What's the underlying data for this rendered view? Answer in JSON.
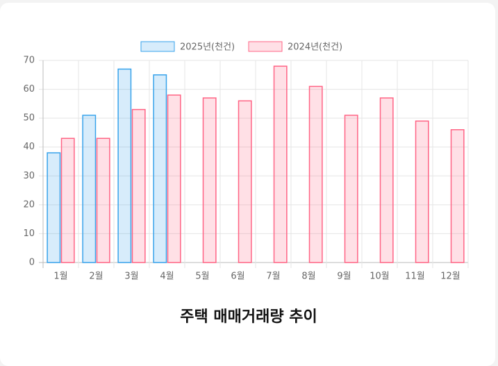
{
  "chart_data": {
    "type": "bar",
    "title": "주택 매매거래량 추이",
    "categories": [
      "1월",
      "2월",
      "3월",
      "4월",
      "5월",
      "6월",
      "7월",
      "8월",
      "9월",
      "10월",
      "11월",
      "12월"
    ],
    "series": [
      {
        "name": "2025년(천건)",
        "color": "#36a2eb",
        "values": [
          38,
          51,
          67,
          65,
          null,
          null,
          null,
          null,
          null,
          null,
          null,
          null
        ]
      },
      {
        "name": "2024년(천건)",
        "color": "#ff6384",
        "values": [
          43,
          43,
          53,
          58,
          57,
          56,
          68,
          61,
          51,
          57,
          49,
          46
        ]
      }
    ],
    "ylim": [
      0,
      70
    ],
    "yticks": [
      0,
      10,
      20,
      30,
      40,
      50,
      60,
      70
    ],
    "grid": true,
    "legend": "top"
  }
}
